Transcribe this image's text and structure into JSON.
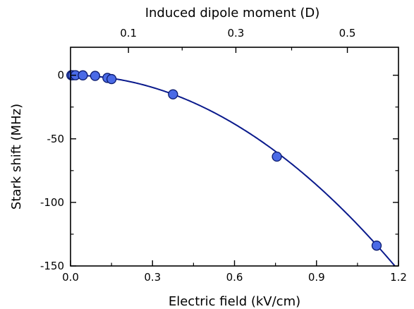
{
  "chart_data": {
    "type": "scatter",
    "xlabel": "Electric field (kV/cm)",
    "ylabel": "Stark shift (MHz)",
    "top_xlabel": "Induced dipole moment (D)",
    "xlim": [
      0,
      1.2
    ],
    "ylim": [
      -150,
      22
    ],
    "xticks": [
      0.0,
      0.3,
      0.6,
      0.9,
      1.2
    ],
    "xtick_labels": [
      "0.0",
      "0.3",
      "0.6",
      "0.9",
      "1.2"
    ],
    "yticks": [
      0,
      -50,
      -100,
      -150
    ],
    "ytick_labels": [
      "0",
      "-50",
      "-100",
      "-150"
    ],
    "top_ticks": [
      0.1,
      0.3,
      0.5
    ],
    "top_tick_labels": [
      "0.1",
      "0.3",
      "0.5"
    ],
    "points": {
      "x": [
        0.003,
        0.008,
        0.018,
        0.045,
        0.09,
        0.135,
        0.15,
        0.375,
        0.755,
        1.12
      ],
      "y": [
        0.0,
        0.0,
        0.0,
        -0.1,
        -0.5,
        -2.1,
        -3.0,
        -15.0,
        -64.0,
        -134.0
      ]
    },
    "fit": {
      "type": "quadratic",
      "a": -106.5
    },
    "grid": false,
    "colors": {
      "line": "#0a1a8c",
      "marker_fill": "#4a6ae6",
      "marker_edge": "#0a1a6e",
      "axis": "#000000"
    }
  }
}
